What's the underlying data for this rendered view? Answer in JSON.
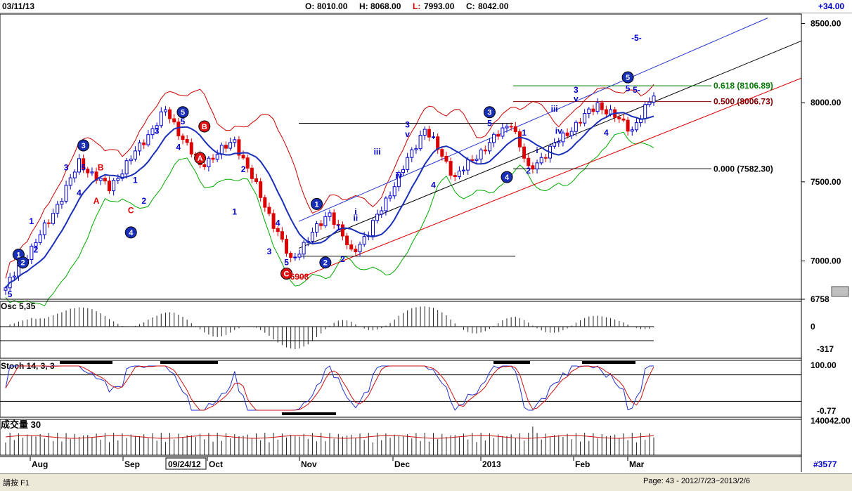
{
  "header": {
    "date": "03/11/13",
    "open_label": "O:",
    "open": "8010.00",
    "high_label": "H:",
    "high": "8068.00",
    "low_label": "L:",
    "low": "7993.00",
    "close_label": "C:",
    "close": "8042.00",
    "change": "+34.00"
  },
  "status": {
    "hint": "請按 F1",
    "page": "Page: 43 - 2012/7/23~2013/2/6"
  },
  "colors": {
    "bull": "#0000cc",
    "bear": "#dd0000",
    "ma": "#1a2fb8",
    "upper_band": "#cc0000",
    "lower_band": "#00aa00",
    "fib_green": "#007700",
    "fib_red": "#880000"
  },
  "chart_data": [
    {
      "type": "candlestick",
      "name": "price",
      "ylim": [
        6758,
        8560
      ],
      "y_ticks": [
        "8500.00",
        "8000.00",
        "7500.00",
        "7000.00",
        "6758"
      ],
      "x_ticks": [
        "Aug",
        "Sep",
        "09/24/12",
        "Oct",
        "Nov",
        "Dec",
        "2013",
        "Feb",
        "Mar"
      ],
      "date_cursor": "09/24/12",
      "bar_count": 151,
      "pivots": [
        {
          "bar": 0,
          "price": 6830
        },
        {
          "bar": 10,
          "price": 7250
        },
        {
          "bar": 17,
          "price": 7620
        },
        {
          "bar": 24,
          "price": 7460
        },
        {
          "bar": 37,
          "price": 7950
        },
        {
          "bar": 45,
          "price": 7600
        },
        {
          "bar": 53,
          "price": 7760
        },
        {
          "bar": 66,
          "price": 7000
        },
        {
          "bar": 75,
          "price": 7310
        },
        {
          "bar": 80,
          "price": 7050
        },
        {
          "bar": 84,
          "price": 7180
        },
        {
          "bar": 97,
          "price": 7840
        },
        {
          "bar": 104,
          "price": 7530
        },
        {
          "bar": 117,
          "price": 7880
        },
        {
          "bar": 121,
          "price": 7570
        },
        {
          "bar": 128,
          "price": 7760
        },
        {
          "bar": 137,
          "price": 7990
        },
        {
          "bar": 145,
          "price": 7830
        },
        {
          "bar": 150,
          "price": 8042
        }
      ],
      "fib_levels": [
        {
          "label": "0.618 (8106.89)",
          "value": 8106.89,
          "color": "#007700"
        },
        {
          "label": "0.500 (8006.73)",
          "value": 8006.73,
          "color": "#880000"
        },
        {
          "label": "0.000 (7582.30)",
          "value": 7582.3,
          "color": "#000000"
        }
      ],
      "annotations": [
        {
          "text": "5",
          "bar": 1,
          "price": 6790,
          "color": "#0000cc"
        },
        {
          "text": "1",
          "bar": 3,
          "price": 7040,
          "style": "circle",
          "color": "#0000cc"
        },
        {
          "text": "2",
          "bar": 4,
          "price": 6990,
          "style": "circle",
          "color": "#0000cc"
        },
        {
          "text": "1",
          "bar": 6,
          "price": 7250,
          "color": "#0000cc"
        },
        {
          "text": "2",
          "bar": 7,
          "price": 7070,
          "color": "#0000cc"
        },
        {
          "text": "3",
          "bar": 14,
          "price": 7590,
          "color": "#0000cc"
        },
        {
          "text": "4",
          "bar": 17,
          "price": 7430,
          "color": "#0000cc"
        },
        {
          "text": "5",
          "bar": 18,
          "price": 7590,
          "color": "#0000cc"
        },
        {
          "text": "3",
          "bar": 18,
          "price": 7730,
          "style": "circle",
          "color": "#0000cc"
        },
        {
          "text": "B",
          "bar": 22,
          "price": 7590,
          "color": "#dd0000"
        },
        {
          "text": "A",
          "bar": 21,
          "price": 7380,
          "color": "#dd0000"
        },
        {
          "text": "C",
          "bar": 29,
          "price": 7320,
          "color": "#dd0000"
        },
        {
          "text": "4",
          "bar": 29,
          "price": 7180,
          "style": "circle",
          "color": "#0000cc"
        },
        {
          "text": "1",
          "bar": 30,
          "price": 7510,
          "color": "#0000cc"
        },
        {
          "text": "2",
          "bar": 32,
          "price": 7380,
          "color": "#0000cc"
        },
        {
          "text": "3",
          "bar": 35,
          "price": 7820,
          "color": "#0000cc"
        },
        {
          "text": "4",
          "bar": 40,
          "price": 7720,
          "color": "#0000cc"
        },
        {
          "text": "5",
          "bar": 41,
          "price": 7880,
          "color": "#0000cc"
        },
        {
          "text": "5",
          "bar": 41,
          "price": 7940,
          "style": "circle",
          "color": "#0000cc"
        },
        {
          "text": "B",
          "bar": 46,
          "price": 7850,
          "style": "circle_red",
          "color": "#dd0000"
        },
        {
          "text": "A",
          "bar": 45,
          "price": 7650,
          "style": "circle_red",
          "color": "#dd0000"
        },
        {
          "text": "2",
          "bar": 55,
          "price": 7580,
          "color": "#0000cc"
        },
        {
          "text": "1",
          "bar": 53,
          "price": 7310,
          "color": "#0000cc"
        },
        {
          "text": "4",
          "bar": 63,
          "price": 7240,
          "color": "#0000cc"
        },
        {
          "text": "3",
          "bar": 61,
          "price": 7060,
          "color": "#0000cc"
        },
        {
          "text": "5",
          "bar": 65,
          "price": 6990,
          "color": "#0000cc"
        },
        {
          "text": "C",
          "bar": 65,
          "price": 6920,
          "style": "circle_red",
          "color": "#dd0000"
        },
        {
          "text": "6908",
          "bar": 68,
          "price": 6900,
          "color": "#dd0000"
        },
        {
          "text": "1",
          "bar": 72,
          "price": 7360,
          "style": "circle",
          "color": "#0000cc"
        },
        {
          "text": "1",
          "bar": 77,
          "price": 7210,
          "color": "#0000cc"
        },
        {
          "text": "2",
          "bar": 74,
          "price": 6990,
          "style": "circle",
          "color": "#0000cc"
        },
        {
          "text": "2",
          "bar": 78,
          "price": 7010,
          "color": "#0000cc"
        },
        {
          "text": "i",
          "bar": 81,
          "price": 7310,
          "color": "#0000cc"
        },
        {
          "text": "ii",
          "bar": 81,
          "price": 7270,
          "color": "#0000cc"
        },
        {
          "text": "iii",
          "bar": 86,
          "price": 7690,
          "color": "#0000cc"
        },
        {
          "text": "iv",
          "bar": 91,
          "price": 7540,
          "color": "#0000cc"
        },
        {
          "text": "3",
          "bar": 93,
          "price": 7860,
          "color": "#0000cc"
        },
        {
          "text": "v",
          "bar": 93,
          "price": 7800,
          "color": "#0000cc"
        },
        {
          "text": "4",
          "bar": 99,
          "price": 7480,
          "color": "#0000cc"
        },
        {
          "text": "3",
          "bar": 112,
          "price": 7940,
          "style": "circle",
          "color": "#0000cc"
        },
        {
          "text": "5",
          "bar": 112,
          "price": 7870,
          "color": "#0000cc"
        },
        {
          "text": "4",
          "bar": 116,
          "price": 7530,
          "style": "circle",
          "color": "#0000cc"
        },
        {
          "text": "1",
          "bar": 120,
          "price": 7810,
          "color": "#0000cc"
        },
        {
          "text": "i",
          "bar": 123,
          "price": 7700,
          "color": "#0000cc"
        },
        {
          "text": "2",
          "bar": 121,
          "price": 7570,
          "color": "#0000cc"
        },
        {
          "text": "iii",
          "bar": 127,
          "price": 7960,
          "color": "#0000cc"
        },
        {
          "text": "iv",
          "bar": 128,
          "price": 7820,
          "color": "#0000cc"
        },
        {
          "text": "3",
          "bar": 132,
          "price": 8080,
          "color": "#0000cc"
        },
        {
          "text": "v",
          "bar": 132,
          "price": 8025,
          "color": "#0000cc"
        },
        {
          "text": "4",
          "bar": 139,
          "price": 7810,
          "color": "#0000cc"
        },
        {
          "text": "5",
          "bar": 144,
          "price": 8160,
          "style": "circle",
          "color": "#0000cc"
        },
        {
          "text": "5",
          "bar": 144,
          "price": 8090,
          "color": "#0000cc"
        },
        {
          "text": "5-",
          "bar": 146,
          "price": 8080,
          "color": "#0000cc"
        },
        {
          "text": "-5-",
          "bar": 146,
          "price": 8410,
          "color": "#0000cc"
        }
      ]
    },
    {
      "type": "histogram",
      "name": "Osc 5,35",
      "title": "Osc 5,35",
      "y_ticks": [
        "0",
        "-317"
      ],
      "ylim": [
        -317,
        200
      ]
    },
    {
      "type": "line",
      "name": "Stoch 14, 3, 3",
      "title": "Stoch 14, 3, 3",
      "y_ticks": [
        "100.00",
        "-0.77"
      ],
      "ylim": [
        -0.77,
        100
      ]
    },
    {
      "type": "bar",
      "name": "成交量 30",
      "title": "成交量 30",
      "y_ticks": [
        "140042.00"
      ],
      "bottom_label": "#3577"
    }
  ]
}
